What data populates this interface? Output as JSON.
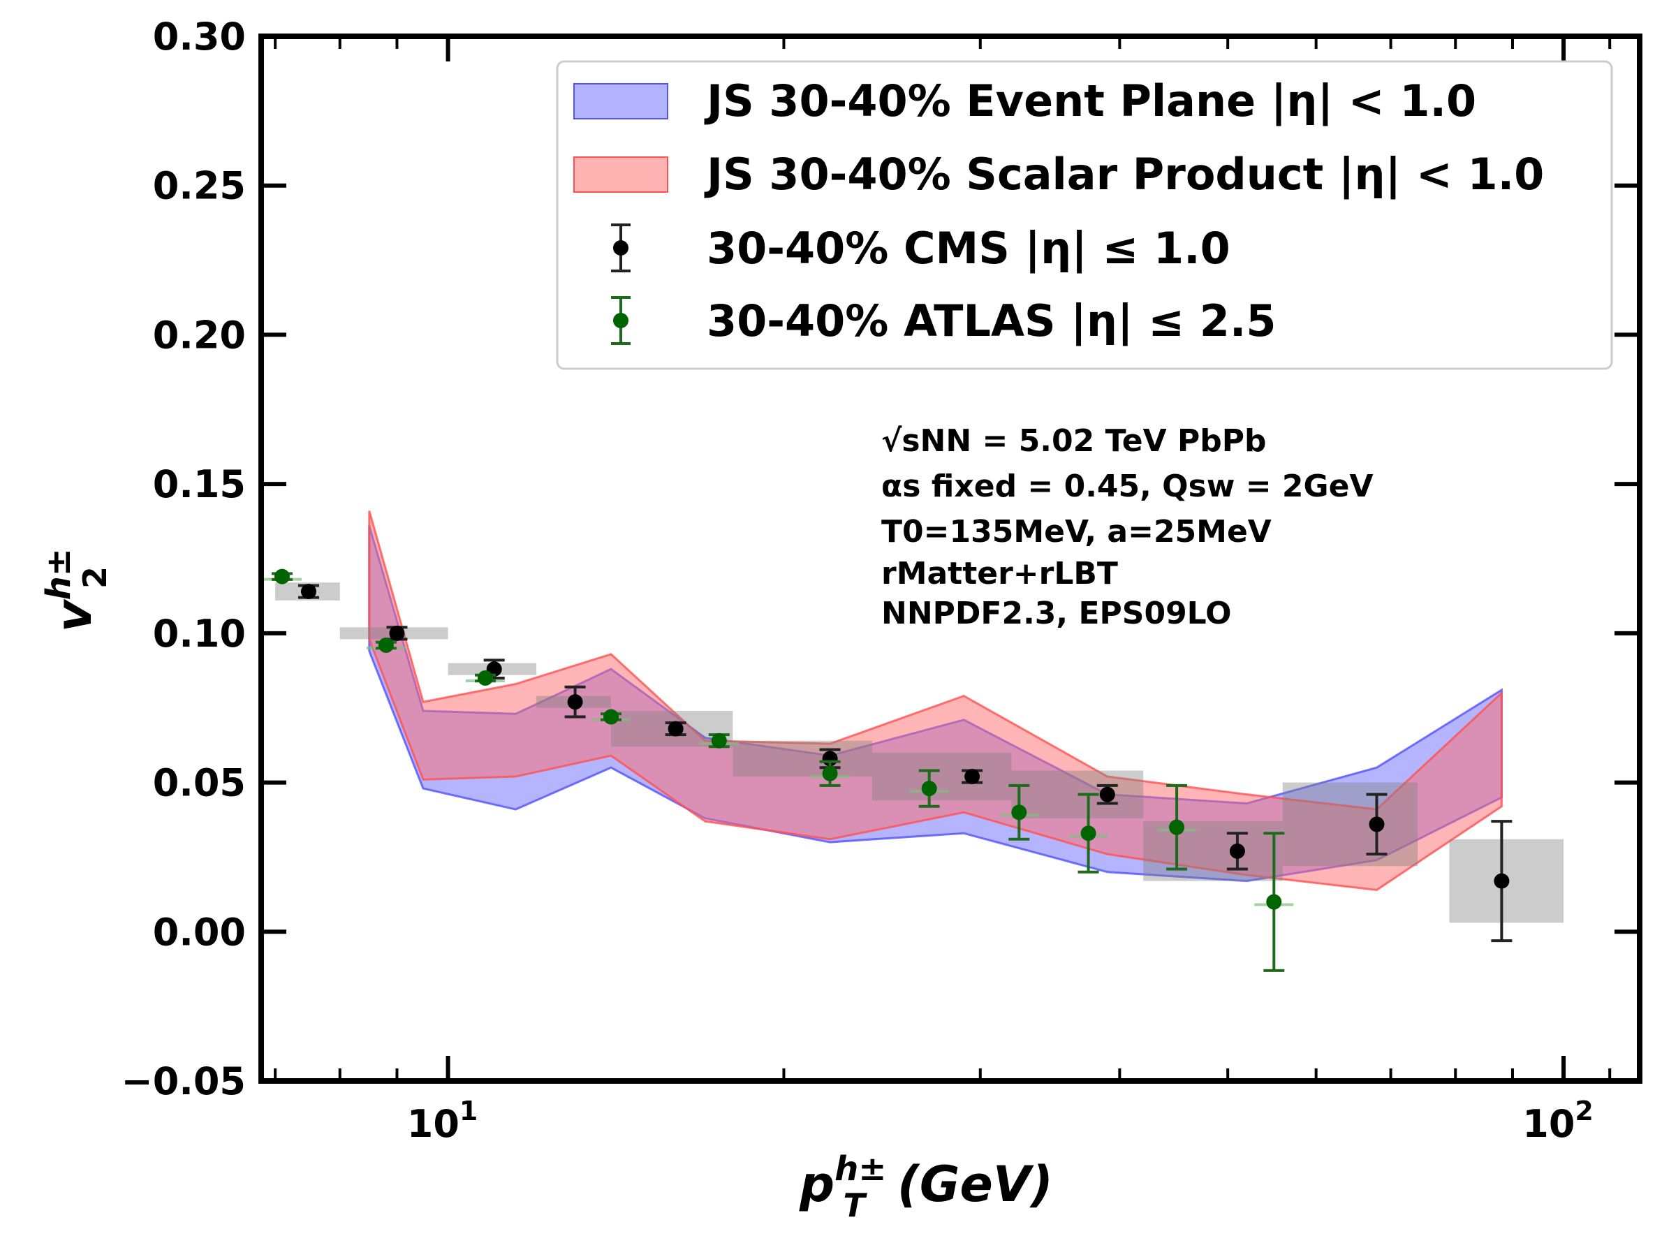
{
  "chart_data": {
    "type": "scatter",
    "xscale": "log",
    "xlim": [
      6.8,
      117
    ],
    "ylim": [
      -0.05,
      0.3
    ],
    "xlabel": "p",
    "xlabel_sup": "h±",
    "xlabel_sub": "T",
    "xlabel_unit": "(GeV)",
    "ylabel": "v",
    "ylabel_sup": "h±",
    "ylabel_sub": "2",
    "yticks": [
      {
        "value": -0.05,
        "label": "−0.05"
      },
      {
        "value": 0.0,
        "label": "0.00"
      },
      {
        "value": 0.05,
        "label": "0.05"
      },
      {
        "value": 0.1,
        "label": "0.10"
      },
      {
        "value": 0.15,
        "label": "0.15"
      },
      {
        "value": 0.2,
        "label": "0.20"
      },
      {
        "value": 0.25,
        "label": "0.25"
      },
      {
        "value": 0.3,
        "label": "0.30"
      }
    ],
    "xticks": [
      {
        "value": 10,
        "base": "10",
        "exp": "1"
      },
      {
        "value": 100,
        "base": "10",
        "exp": "2"
      }
    ],
    "legend": [
      {
        "text": "JS 30-40% Event Plane |η| < 1.0",
        "kind": "band",
        "color": "#8080ff"
      },
      {
        "text": "JS 30-40% Scalar Product |η| < 1.0",
        "kind": "band",
        "color": "#ff8080"
      },
      {
        "text": "30-40% CMS |η| ≤ 1.0",
        "kind": "point",
        "color": "#000000"
      },
      {
        "text": "30-40% ATLAS |η| ≤ 2.5",
        "kind": "point",
        "color": "#006400"
      }
    ],
    "annotation_lines": [
      "√sNN = 5.02 TeV PbPb",
      "αs fixed = 0.45, Qsw = 2GeV",
      "T0=135MeV, a=25MeV",
      "rMatter+rLBT",
      "NNPDF2.3, EPS09LO"
    ],
    "series": [
      {
        "name": "JS 30-40% Event Plane |η| < 1.0",
        "kind": "band",
        "fill": "#6c6cff",
        "edge": "#5050ff",
        "x": [
          8.5,
          9.5,
          11.5,
          14.0,
          17.0,
          22.0,
          29.0,
          39.0,
          52.0,
          68.0,
          88.0
        ],
        "lower": [
          0.094,
          0.048,
          0.041,
          0.055,
          0.038,
          0.03,
          0.033,
          0.02,
          0.017,
          0.024,
          0.045
        ],
        "upper": [
          0.136,
          0.074,
          0.073,
          0.088,
          0.065,
          0.059,
          0.071,
          0.046,
          0.043,
          0.055,
          0.081
        ]
      },
      {
        "name": "JS 30-40% Scalar Product |η| < 1.0",
        "kind": "band",
        "fill": "#ff6c6c",
        "edge": "#ff5050",
        "x": [
          8.5,
          9.5,
          11.5,
          14.0,
          17.0,
          22.0,
          29.0,
          39.0,
          52.0,
          68.0,
          88.0
        ],
        "lower": [
          0.098,
          0.051,
          0.052,
          0.059,
          0.037,
          0.031,
          0.04,
          0.026,
          0.019,
          0.014,
          0.042
        ],
        "upper": [
          0.141,
          0.077,
          0.083,
          0.093,
          0.064,
          0.063,
          0.079,
          0.052,
          0.046,
          0.041,
          0.08
        ]
      },
      {
        "name": "30-40% CMS |η| ≤ 1.0",
        "kind": "points",
        "color": "#000000",
        "points": [
          {
            "x": 7.5,
            "y": 0.114,
            "err": 0.002,
            "sys": 0.003,
            "xlo": 7.0,
            "xhi": 8.0
          },
          {
            "x": 9.0,
            "y": 0.1,
            "err": 0.002,
            "sys": 0.002,
            "xlo": 8.0,
            "xhi": 10.0
          },
          {
            "x": 11.0,
            "y": 0.088,
            "err": 0.003,
            "sys": 0.002,
            "xlo": 10.0,
            "xhi": 12.0
          },
          {
            "x": 13.0,
            "y": 0.077,
            "err": 0.005,
            "sys": 0.002,
            "xlo": 12.0,
            "xhi": 14.0
          },
          {
            "x": 16.0,
            "y": 0.068,
            "err": 0.002,
            "sys": 0.006,
            "xlo": 14.0,
            "xhi": 18.0
          },
          {
            "x": 22.0,
            "y": 0.058,
            "err": 0.003,
            "sys": 0.006,
            "xlo": 18.0,
            "xhi": 24.0
          },
          {
            "x": 29.5,
            "y": 0.052,
            "err": 0.002,
            "sys": 0.008,
            "xlo": 24.0,
            "xhi": 32.0
          },
          {
            "x": 39.0,
            "y": 0.046,
            "err": 0.003,
            "sys": 0.008,
            "xlo": 32.0,
            "xhi": 42.0
          },
          {
            "x": 51.0,
            "y": 0.027,
            "err": 0.006,
            "sys": 0.01,
            "xlo": 42.0,
            "xhi": 56.0
          },
          {
            "x": 68.0,
            "y": 0.036,
            "err": 0.01,
            "sys": 0.014,
            "xlo": 56.0,
            "xhi": 74.0
          },
          {
            "x": 88.0,
            "y": 0.017,
            "err": 0.02,
            "sys": 0.014,
            "xlo": 79.0,
            "xhi": 100.0
          }
        ]
      },
      {
        "name": "30-40% ATLAS |η| ≤ 2.5",
        "kind": "points",
        "color": "#006400",
        "points": [
          {
            "x": 7.1,
            "y": 0.119,
            "err": 0.001,
            "sys": 0.001
          },
          {
            "x": 8.8,
            "y": 0.096,
            "err": 0.001,
            "sys": 0.001
          },
          {
            "x": 10.8,
            "y": 0.085,
            "err": 0.001,
            "sys": 0.001
          },
          {
            "x": 14.0,
            "y": 0.072,
            "err": 0.001,
            "sys": 0.001
          },
          {
            "x": 17.5,
            "y": 0.064,
            "err": 0.002,
            "sys": 0.001
          },
          {
            "x": 22.0,
            "y": 0.053,
            "err": 0.004,
            "sys": 0.001
          },
          {
            "x": 27.0,
            "y": 0.048,
            "err": 0.006,
            "sys": 0.001
          },
          {
            "x": 32.5,
            "y": 0.04,
            "err": 0.009,
            "sys": 0.001
          },
          {
            "x": 37.5,
            "y": 0.033,
            "err": 0.013,
            "sys": 0.001
          },
          {
            "x": 45.0,
            "y": 0.035,
            "err": 0.014,
            "sys": 0.001
          },
          {
            "x": 55.0,
            "y": 0.01,
            "err": 0.023,
            "sys": 0.001
          }
        ]
      }
    ]
  }
}
